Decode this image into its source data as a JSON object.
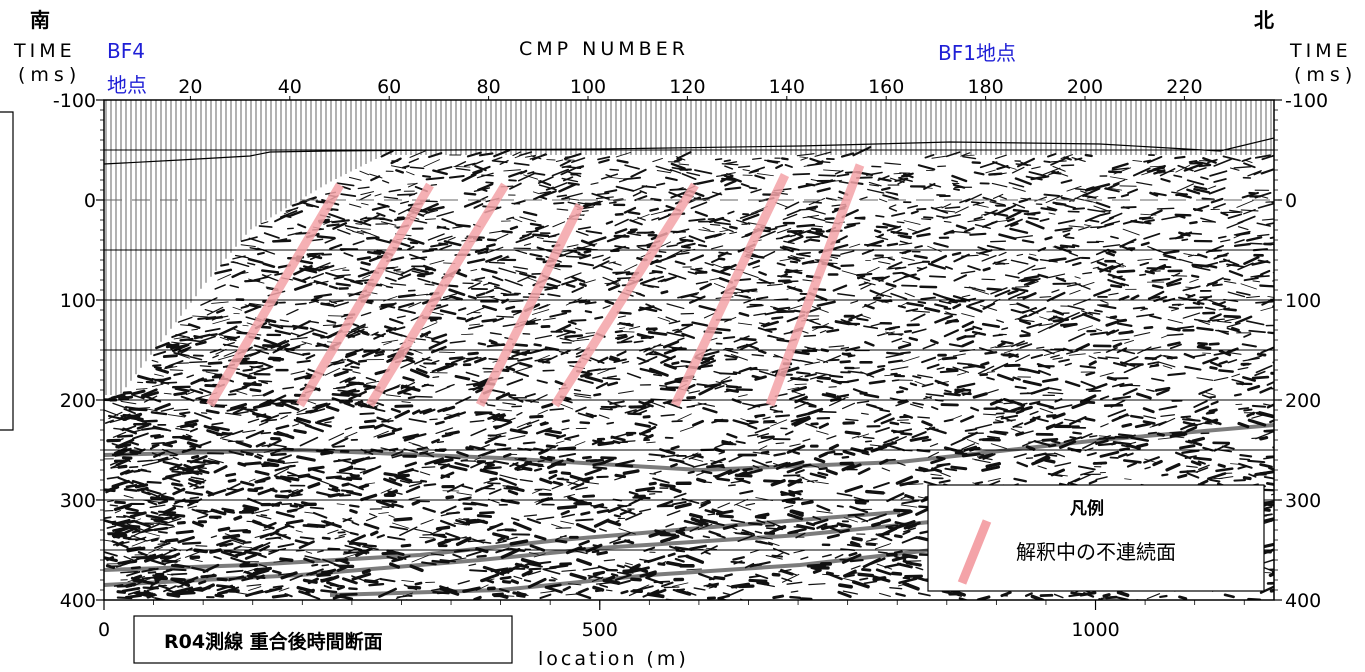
{
  "direction": {
    "south": "南",
    "north": "北"
  },
  "axes": {
    "time_title_left": [
      "TIME",
      "(ms)"
    ],
    "time_title_right": [
      "TIME",
      "(ms)"
    ],
    "cmp_title": "CMP NUMBER",
    "cmp_ticks": [
      20,
      40,
      60,
      80,
      100,
      120,
      140,
      160,
      180,
      200,
      220
    ],
    "time_ticks": [
      -100,
      0,
      100,
      200,
      300,
      400
    ],
    "location_ticks": [
      0,
      500,
      1000
    ],
    "location_title": "location (m)",
    "time_range": [
      -100,
      400
    ],
    "location_range": [
      0,
      1180
    ]
  },
  "markers": {
    "bf4_line1": "BF4",
    "bf4_line2": "地点",
    "bf1": "BF1地点"
  },
  "legend": {
    "title": "凡例",
    "item": "解釈中の不連続面",
    "line_color": "#f4a3a8"
  },
  "caption": "R04測線 重合後時間断面",
  "discontinuities": [
    {
      "x_top": 340,
      "t_top": -15,
      "x_bottom": 210,
      "t_bottom": 205
    },
    {
      "x_top": 430,
      "t_top": -15,
      "x_bottom": 300,
      "t_bottom": 205
    },
    {
      "x_top": 505,
      "t_top": -15,
      "x_bottom": 370,
      "t_bottom": 205
    },
    {
      "x_top": 580,
      "t_top": 5,
      "x_bottom": 480,
      "t_bottom": 205
    },
    {
      "x_top": 695,
      "t_top": -15,
      "x_bottom": 555,
      "t_bottom": 205
    },
    {
      "x_top": 785,
      "t_top": -25,
      "x_bottom": 675,
      "t_bottom": 205
    },
    {
      "x_top": 860,
      "t_top": -35,
      "x_bottom": 770,
      "t_bottom": 205
    }
  ]
}
